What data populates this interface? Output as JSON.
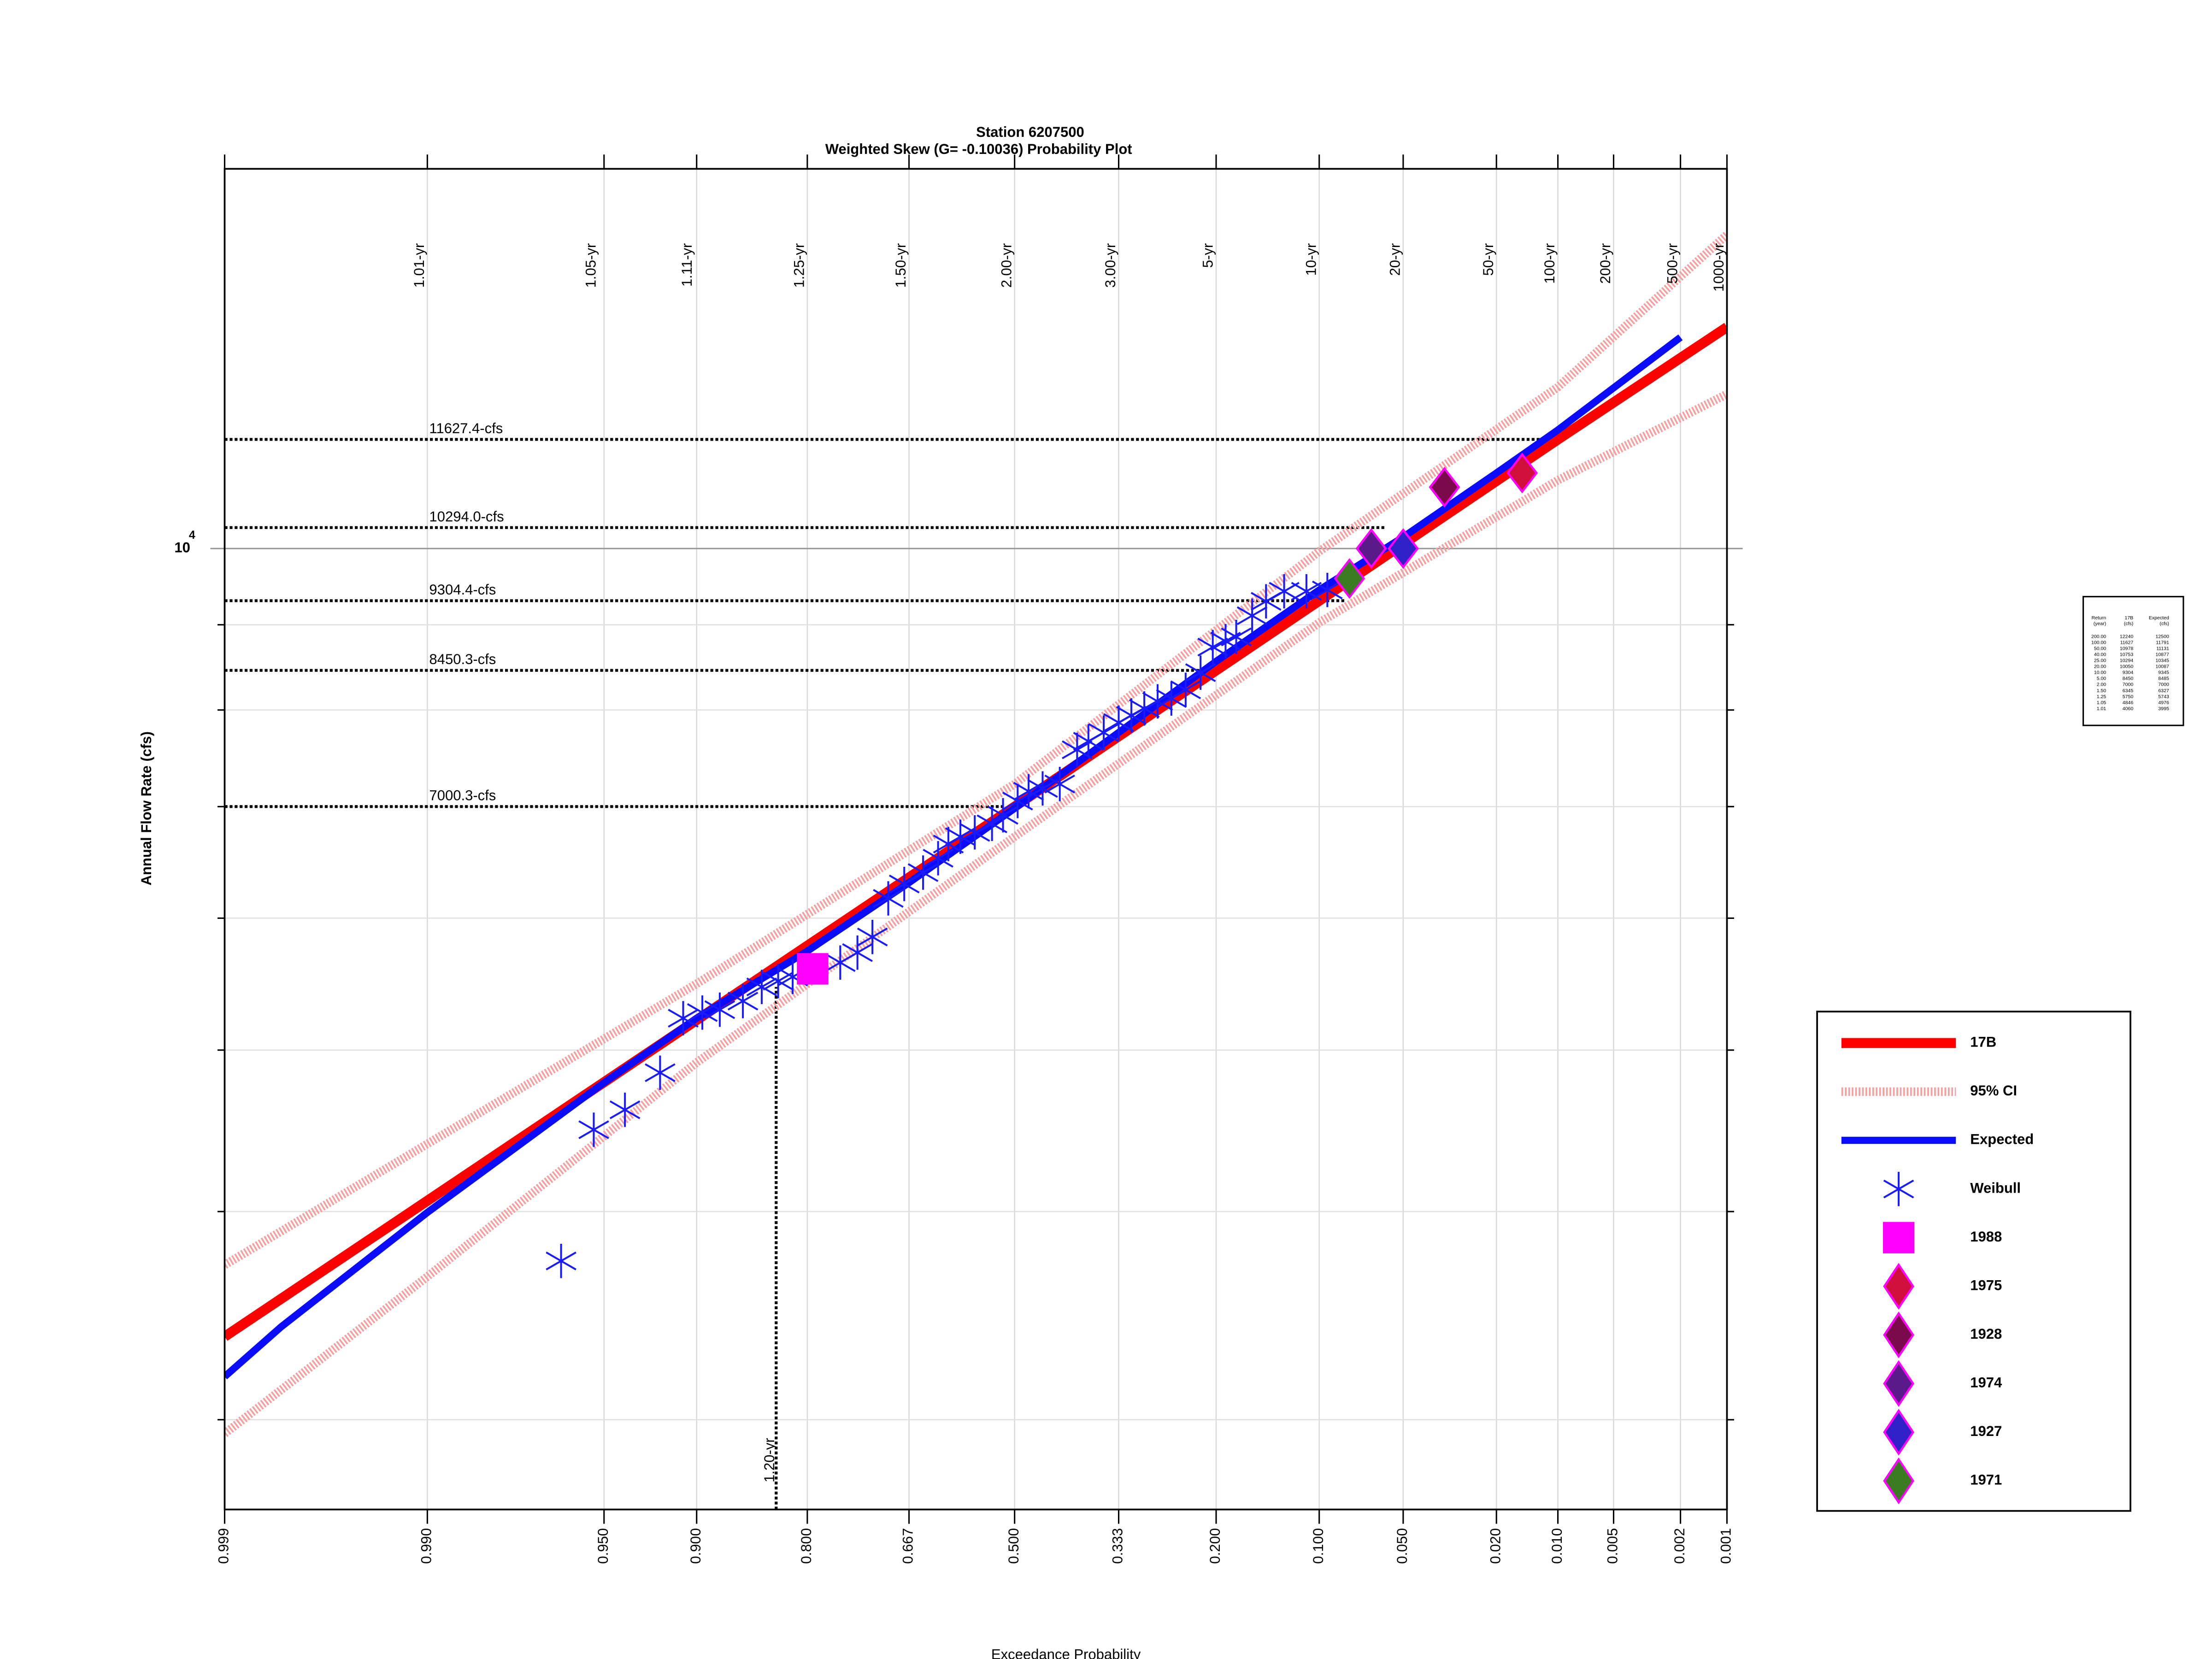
{
  "chart_data": {
    "type": "probability",
    "title": "Station 6207500",
    "subtitle": "Weighted Skew (G= -0.10036) Probability Plot",
    "x_label": "Exceedance Probability",
    "y_label": "Annual Flow Rate (cfs)",
    "xscale": "pearson3",
    "skew": -0.10036,
    "yscale": "log",
    "grid": true,
    "xlim": [
      0.999,
      0.001
    ],
    "ylim": [
      2650,
      16900
    ],
    "xticks": [
      0.999,
      {
        "value": 0.99,
        "label": "0.990"
      },
      {
        "value": 0.95,
        "label": "0.950"
      },
      {
        "value": 0.9,
        "label": "0.900"
      },
      {
        "value": 0.8,
        "label": "0.800"
      },
      0.667,
      {
        "value": 0.5,
        "label": "0.500"
      },
      0.333,
      {
        "value": 0.2,
        "label": "0.200"
      },
      {
        "value": 0.1,
        "label": "0.100"
      },
      {
        "value": 0.05,
        "label": "0.050"
      },
      {
        "value": 0.02,
        "label": "0.020"
      },
      {
        "value": 0.01,
        "label": "0.010"
      },
      0.005,
      0.002,
      0.001
    ],
    "top_ticks": [
      {
        "value": 0.99,
        "label": "1.01-yr"
      },
      {
        "value": 0.952,
        "label": "1.05-yr"
      },
      {
        "value": 0.901,
        "label": "1.11-yr"
      },
      {
        "value": 0.8,
        "label": "1.25-yr"
      },
      {
        "value": 0.667,
        "label": "1.50-yr"
      },
      {
        "value": 0.5,
        "label": "2.00-yr"
      },
      {
        "value": 0.333,
        "label": "3.00-yr"
      },
      {
        "value": 0.2,
        "label": "5-yr"
      },
      {
        "value": 0.1,
        "label": "10-yr"
      },
      {
        "value": 0.05,
        "label": "20-yr"
      },
      {
        "value": 0.02,
        "label": "50-yr"
      },
      {
        "value": 0.01,
        "label": "100-yr"
      },
      {
        "value": 0.005,
        "label": "200-yr"
      },
      {
        "value": 0.002,
        "label": "500-yr"
      },
      {
        "value": 0.001,
        "label": "1000-yr"
      }
    ],
    "yticks": [
      {
        "value": 10000,
        "label": "10",
        "exponent": "4"
      }
    ],
    "yminor": [
      3000,
      4000,
      5000,
      6000,
      7000,
      8000,
      9000
    ],
    "hlines": [
      {
        "value": 11627.4,
        "label": "11627.4-cfs",
        "to": 0.012
      },
      {
        "value": 10294.0,
        "label": "10294.0-cfs",
        "to": 0.058
      },
      {
        "value": 9304.4,
        "label": "9304.4-cfs",
        "to": 0.082
      },
      {
        "value": 8450.3,
        "label": "8450.3-cfs",
        "to": 0.21
      },
      {
        "value": 7000.3,
        "label": "7000.3-cfs",
        "to": 0.52
      }
    ],
    "vline": {
      "value": 0.833,
      "label": "1.20-yr",
      "to": 5456
    },
    "series": [
      {
        "name": "17B",
        "style": "line",
        "color": "#ff0000",
        "width": 7,
        "x": [
          0.999,
          0.99,
          0.5,
          0.01,
          0.001
        ],
        "values": [
          3365,
          4060,
          7000,
          11627,
          13580
        ]
      },
      {
        "name": "95% CI",
        "style": "band",
        "color": "#f4a0a0",
        "width": 6,
        "x": [
          0.999,
          0.99,
          0.9,
          0.5,
          0.1,
          0.01,
          0.001
        ],
        "values": [
          3715,
          4392,
          5480,
          7222,
          9961,
          12500,
          15430
        ],
        "lower": [
          2943,
          3656,
          4915,
          6715,
          9026,
          10990,
          12380
        ]
      },
      {
        "name": "Expected",
        "style": "line",
        "color": "#0a0aff",
        "width": 5,
        "x": [
          0.999,
          0.998,
          0.99,
          0.95,
          0.9,
          0.8,
          0.667,
          0.5,
          0.333,
          0.2,
          0.1,
          0.05,
          0.02,
          0.01,
          0.002
        ],
        "values": [
          3184,
          3412,
          3995,
          4780,
          5225,
          5733,
          6302,
          6983,
          7755,
          8556,
          9443,
          10159,
          11100,
          11780,
          13390
        ]
      },
      {
        "name": "Weibull",
        "style": "asterisk",
        "color": "#1a1aff",
        "x": [
          0.965,
          0.954,
          0.941,
          0.923,
          0.909,
          0.896,
          0.883,
          0.864,
          0.847,
          0.831,
          0.816,
          0.761,
          0.739,
          0.719,
          0.697,
          0.674,
          0.646,
          0.623,
          0.607,
          0.588,
          0.565,
          0.537,
          0.519,
          0.495,
          0.477,
          0.454,
          0.426,
          0.398,
          0.38,
          0.356,
          0.333,
          0.314,
          0.295,
          0.276,
          0.257,
          0.238,
          0.219,
          0.204,
          0.189,
          0.177,
          0.16,
          0.146,
          0.129,
          0.11,
          0.094
        ],
        "values": [
          3736,
          4479,
          4604,
          4846,
          5225,
          5266,
          5287,
          5350,
          5456,
          5500,
          5532,
          5643,
          5721,
          5846,
          6166,
          6290,
          6390,
          6518,
          6647,
          6715,
          6755,
          6835,
          6917,
          7054,
          7150,
          7178,
          7222,
          7572,
          7662,
          7754,
          7862,
          7940,
          8017,
          8096,
          8128,
          8226,
          8424,
          8727,
          8798,
          8850,
          9114,
          9296,
          9426,
          9426,
          9443
        ]
      },
      {
        "name": "1988",
        "style": "square",
        "color": "#ff00ff",
        "x": [
          0.794
        ],
        "values": [
          5594
        ]
      },
      {
        "name": "1975",
        "style": "diamond",
        "color": "#d0103a",
        "edge": "#ff00ff",
        "x": [
          0.0151
        ],
        "values": [
          11100
        ]
      },
      {
        "name": "1928",
        "style": "diamond",
        "color": "#7a0a4a",
        "edge": "#ff00ff",
        "x": [
          0.034
        ],
        "values": [
          10885
        ]
      },
      {
        "name": "1974",
        "style": "diamond",
        "color": "#5a1a8a",
        "edge": "#ff00ff",
        "x": [
          0.066
        ],
        "values": [
          10000
        ]
      },
      {
        "name": "1927",
        "style": "diamond",
        "color": "#3020c8",
        "edge": "#ff00ff",
        "x": [
          0.05
        ],
        "values": [
          10000
        ]
      },
      {
        "name": "1971",
        "style": "diamond",
        "color": "#3a7a20",
        "edge": "#ff00ff",
        "x": [
          0.079
        ],
        "values": [
          9594
        ]
      }
    ]
  },
  "table": {
    "columns": [
      [
        "Return",
        "(year)"
      ],
      [
        "17B",
        "(cfs)"
      ],
      [
        "Expected",
        "(cfs)"
      ]
    ],
    "rows": [
      [
        "200.00",
        "12240",
        "12500"
      ],
      [
        "100.00",
        "11627",
        "11791"
      ],
      [
        "50.00",
        "10978",
        "11131"
      ],
      [
        "40.00",
        "10753",
        "10877"
      ],
      [
        "25.00",
        "10294",
        "10345"
      ],
      [
        "20.00",
        "10050",
        "10087"
      ],
      [
        "10.00",
        "9304",
        "9345"
      ],
      [
        "5.00",
        "8450",
        "8485"
      ],
      [
        "2.00",
        "7000",
        "7000"
      ],
      [
        "1.50",
        "6345",
        "6327"
      ],
      [
        "1.25",
        "5750",
        "5743"
      ],
      [
        "1.05",
        "4846",
        "4976"
      ],
      [
        "1.01",
        "4060",
        "3995"
      ]
    ]
  }
}
